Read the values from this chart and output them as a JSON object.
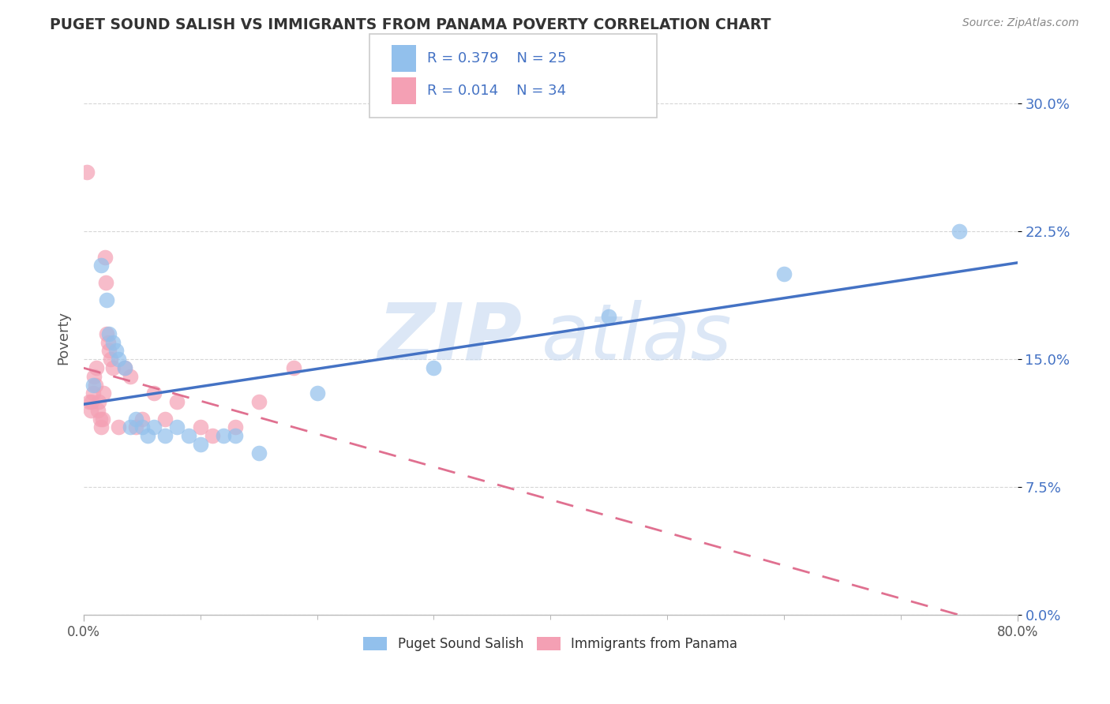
{
  "title": "PUGET SOUND SALISH VS IMMIGRANTS FROM PANAMA POVERTY CORRELATION CHART",
  "source": "Source: ZipAtlas.com",
  "ylabel_label": "Poverty",
  "ytick_values": [
    0.0,
    7.5,
    15.0,
    22.5,
    30.0
  ],
  "xlim": [
    0.0,
    80.0
  ],
  "ylim": [
    0.0,
    32.5
  ],
  "legend_labels": [
    "Puget Sound Salish",
    "Immigrants from Panama"
  ],
  "color_blue": "#92C0EC",
  "color_pink": "#F4A0B4",
  "line_blue": "#4472C4",
  "line_pink": "#E07090",
  "watermark_zip": "ZIP",
  "watermark_atlas": "atlas",
  "background_color": "#FFFFFF",
  "grid_color": "#CCCCCC",
  "blue_scatter": [
    [
      0.8,
      13.5
    ],
    [
      1.5,
      20.5
    ],
    [
      2.0,
      18.5
    ],
    [
      2.2,
      16.5
    ],
    [
      2.5,
      16.0
    ],
    [
      2.8,
      15.5
    ],
    [
      3.0,
      15.0
    ],
    [
      3.5,
      14.5
    ],
    [
      4.0,
      11.0
    ],
    [
      4.5,
      11.5
    ],
    [
      5.0,
      11.0
    ],
    [
      5.5,
      10.5
    ],
    [
      6.0,
      11.0
    ],
    [
      7.0,
      10.5
    ],
    [
      8.0,
      11.0
    ],
    [
      9.0,
      10.5
    ],
    [
      10.0,
      10.0
    ],
    [
      12.0,
      10.5
    ],
    [
      13.0,
      10.5
    ],
    [
      15.0,
      9.5
    ],
    [
      20.0,
      13.0
    ],
    [
      30.0,
      14.5
    ],
    [
      45.0,
      17.5
    ],
    [
      60.0,
      20.0
    ],
    [
      75.0,
      22.5
    ]
  ],
  "pink_scatter": [
    [
      0.3,
      26.0
    ],
    [
      0.5,
      12.5
    ],
    [
      0.6,
      12.0
    ],
    [
      0.7,
      12.5
    ],
    [
      0.8,
      13.0
    ],
    [
      0.9,
      14.0
    ],
    [
      1.0,
      13.5
    ],
    [
      1.1,
      14.5
    ],
    [
      1.2,
      12.0
    ],
    [
      1.3,
      12.5
    ],
    [
      1.4,
      11.5
    ],
    [
      1.5,
      11.0
    ],
    [
      1.6,
      11.5
    ],
    [
      1.7,
      13.0
    ],
    [
      1.8,
      21.0
    ],
    [
      1.9,
      19.5
    ],
    [
      2.0,
      16.5
    ],
    [
      2.1,
      16.0
    ],
    [
      2.2,
      15.5
    ],
    [
      2.3,
      15.0
    ],
    [
      2.5,
      14.5
    ],
    [
      3.0,
      11.0
    ],
    [
      3.5,
      14.5
    ],
    [
      4.0,
      14.0
    ],
    [
      4.5,
      11.0
    ],
    [
      5.0,
      11.5
    ],
    [
      6.0,
      13.0
    ],
    [
      7.0,
      11.5
    ],
    [
      8.0,
      12.5
    ],
    [
      10.0,
      11.0
    ],
    [
      11.0,
      10.5
    ],
    [
      13.0,
      11.0
    ],
    [
      15.0,
      12.5
    ],
    [
      18.0,
      14.5
    ]
  ]
}
